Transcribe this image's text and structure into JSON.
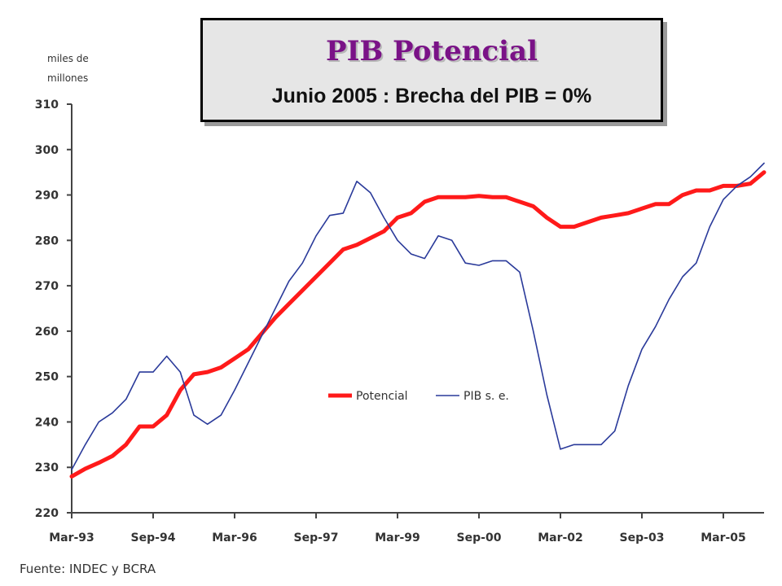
{
  "title": "PIB Potencial",
  "subtitle": "Junio 2005 : Brecha del PIB = 0%",
  "y_unit_line1": "miles de",
  "y_unit_line2": "millones",
  "source": "Fuente: INDEC y BCRA",
  "colors": {
    "potencial": "#ff1a1a",
    "pib": "#2a3a9a",
    "axis": "#444444"
  },
  "chart_data": {
    "type": "line",
    "ylim": [
      220,
      310
    ],
    "xlim": [
      1993.17,
      2005.92
    ],
    "yticks": [
      220,
      230,
      240,
      250,
      260,
      270,
      280,
      290,
      300,
      310
    ],
    "xticks": [
      {
        "label": "Mar-93",
        "x": 1993.17
      },
      {
        "label": "Sep-94",
        "x": 1994.67
      },
      {
        "label": "Mar-96",
        "x": 1996.17
      },
      {
        "label": "Sep-97",
        "x": 1997.67
      },
      {
        "label": "Mar-99",
        "x": 1999.17
      },
      {
        "label": "Sep-00",
        "x": 2000.67
      },
      {
        "label": "Mar-02",
        "x": 2002.17
      },
      {
        "label": "Sep-03",
        "x": 2003.67
      },
      {
        "label": "Mar-05",
        "x": 2005.17
      }
    ],
    "legend_position": "center-right",
    "series": [
      {
        "name": "Potencial",
        "x": [
          1993.17,
          1993.42,
          1993.67,
          1993.92,
          1994.17,
          1994.42,
          1994.67,
          1994.92,
          1995.17,
          1995.42,
          1995.67,
          1995.92,
          1996.17,
          1996.42,
          1996.67,
          1996.92,
          1997.17,
          1997.42,
          1997.67,
          1997.92,
          1998.17,
          1998.42,
          1998.67,
          1998.92,
          1999.17,
          1999.42,
          1999.67,
          1999.92,
          2000.17,
          2000.42,
          2000.67,
          2000.92,
          2001.17,
          2001.42,
          2001.67,
          2001.92,
          2002.17,
          2002.42,
          2002.67,
          2002.92,
          2003.17,
          2003.42,
          2003.67,
          2003.92,
          2004.17,
          2004.42,
          2004.67,
          2004.92,
          2005.17,
          2005.42,
          2005.67,
          2005.92
        ],
        "values": [
          228,
          229.7,
          231,
          232.5,
          235,
          239,
          239,
          241.5,
          247,
          250.5,
          251,
          252,
          254,
          256,
          259.5,
          263,
          266,
          269,
          272,
          275,
          278,
          279,
          280.5,
          282,
          285,
          286,
          288.5,
          289.5,
          289.5,
          289.5,
          289.8,
          289.5,
          289.5,
          288.5,
          287.5,
          285,
          283,
          283,
          284,
          285,
          285.5,
          286,
          287,
          288,
          288,
          290,
          291,
          291,
          292,
          292,
          292.5,
          295
        ]
      },
      {
        "name": "PIB s. e.",
        "x": [
          1993.17,
          1993.42,
          1993.67,
          1993.92,
          1994.17,
          1994.42,
          1994.67,
          1994.92,
          1995.17,
          1995.42,
          1995.67,
          1995.92,
          1996.17,
          1996.42,
          1996.67,
          1996.92,
          1997.17,
          1997.42,
          1997.67,
          1997.92,
          1998.17,
          1998.42,
          1998.67,
          1998.92,
          1999.17,
          1999.42,
          1999.67,
          1999.92,
          2000.17,
          2000.42,
          2000.67,
          2000.92,
          2001.17,
          2001.42,
          2001.67,
          2001.92,
          2002.17,
          2002.42,
          2002.67,
          2002.92,
          2003.17,
          2003.42,
          2003.67,
          2003.92,
          2004.17,
          2004.42,
          2004.67,
          2004.92,
          2005.17,
          2005.42,
          2005.67,
          2005.92
        ],
        "values": [
          229.5,
          235,
          240,
          242,
          245,
          251,
          251,
          254.5,
          251,
          241.5,
          239.5,
          241.5,
          247,
          253,
          259,
          265,
          271,
          275,
          281,
          285.5,
          286,
          293,
          290.5,
          285,
          280,
          277,
          276,
          281,
          280,
          275,
          274.5,
          275.5,
          275.5,
          273,
          260,
          246,
          234,
          235,
          235,
          235,
          238,
          248,
          256,
          261,
          267,
          272,
          275,
          283,
          289,
          292,
          294,
          297
        ]
      }
    ]
  }
}
